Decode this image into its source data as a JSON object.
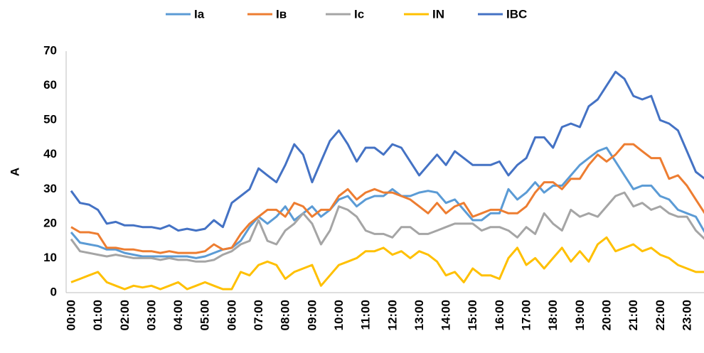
{
  "chart_data": {
    "type": "line",
    "ylabel": "A",
    "categories": [
      "00:00",
      null,
      null,
      "01:00",
      null,
      null,
      "02:00",
      null,
      null,
      "03:00",
      null,
      null,
      "04:00",
      null,
      null,
      "05:00",
      null,
      null,
      "06:00",
      null,
      null,
      "07:00",
      null,
      null,
      "08:00",
      null,
      null,
      "09:00",
      null,
      null,
      "10:00",
      null,
      null,
      "11:00",
      null,
      null,
      "12:00",
      null,
      null,
      "13:00",
      null,
      null,
      "14:00",
      null,
      null,
      "15:00",
      null,
      null,
      "16:00",
      null,
      null,
      "17:00",
      null,
      null,
      "18:00",
      null,
      null,
      "19:00",
      null,
      null,
      "20:00",
      null,
      null,
      "21:00",
      null,
      null,
      "22:00",
      null,
      null,
      "23:00",
      null,
      null
    ],
    "ylim": [
      0,
      70
    ],
    "yticks": [
      0,
      10,
      20,
      30,
      40,
      50,
      60,
      70
    ],
    "grid": false,
    "legend": "top",
    "series": [
      {
        "name": "Ia",
        "color": "#5b9bd5",
        "values": [
          17.5,
          14.5,
          14,
          13.5,
          12.5,
          12.5,
          11.5,
          11,
          10.5,
          10.5,
          10.5,
          10.5,
          10.5,
          10.5,
          10,
          10.5,
          11.5,
          12.5,
          13,
          15,
          19,
          22,
          20,
          22,
          25,
          21,
          23,
          25,
          22,
          24,
          27,
          28,
          25,
          27,
          28,
          28,
          30,
          28,
          28,
          29,
          29.5,
          29,
          26,
          27,
          24,
          21,
          21,
          23,
          23,
          30,
          27,
          29,
          32,
          29,
          31,
          31,
          34,
          37,
          39,
          41,
          42,
          38,
          34,
          30,
          31,
          31,
          28,
          27,
          24,
          23,
          22,
          17.5
        ]
      },
      {
        "name": "Iʙ",
        "color": "#ed7d31",
        "values": [
          19,
          17.5,
          17.5,
          17,
          13,
          13,
          12.5,
          12.5,
          12,
          12,
          11.5,
          12,
          11.5,
          11.5,
          11.5,
          12,
          14,
          12.5,
          13,
          17,
          20,
          22,
          24,
          24,
          22,
          26,
          25,
          22,
          24,
          24,
          28,
          30,
          27,
          29,
          30,
          29,
          29,
          28,
          27,
          25,
          23,
          26,
          23,
          25,
          26,
          22,
          23,
          24,
          24,
          23,
          23,
          25,
          29,
          32,
          32,
          30,
          33,
          33,
          37,
          40,
          38,
          40,
          43,
          43,
          41,
          39,
          39,
          33,
          34,
          31,
          27,
          23
        ]
      },
      {
        "name": "Ic",
        "color": "#a5a5a5",
        "values": [
          15.5,
          12,
          11.5,
          11,
          10.5,
          11,
          10.5,
          10,
          10,
          10,
          9.5,
          10,
          9.5,
          9.5,
          9,
          9,
          9.5,
          11,
          12,
          14,
          15,
          21,
          15,
          14,
          18,
          20,
          23,
          20,
          14,
          18,
          25,
          24,
          22,
          18,
          17,
          17,
          16,
          19,
          19,
          17,
          17,
          18,
          19,
          20,
          20,
          20,
          18,
          19,
          19,
          18,
          16,
          19,
          17,
          23,
          20,
          18,
          24,
          22,
          23,
          22,
          25,
          28,
          29,
          25,
          26,
          24,
          25,
          23,
          22,
          22,
          18,
          15.5
        ]
      },
      {
        "name": "IN",
        "color": "#ffc000",
        "values": [
          3,
          4,
          5,
          6,
          3,
          2,
          1,
          2,
          1.5,
          2,
          1,
          2,
          3,
          1,
          2,
          3,
          2,
          1,
          1,
          6,
          5,
          8,
          9,
          8,
          4,
          6,
          7,
          8,
          2,
          5,
          8,
          9,
          10,
          12,
          12,
          13,
          11,
          12,
          10,
          12,
          11,
          9,
          5,
          6,
          3,
          7,
          5,
          5,
          4,
          10,
          13,
          8,
          10,
          7,
          10,
          13,
          9,
          12,
          9,
          14,
          16,
          12,
          13,
          14,
          12,
          13,
          11,
          10,
          8,
          7,
          6,
          6
        ]
      },
      {
        "name": "IBC",
        "color": "#4472c4",
        "values": [
          29.5,
          26,
          25.5,
          24,
          20,
          20.5,
          19.5,
          19.5,
          19,
          19,
          18.5,
          19.5,
          18,
          18.5,
          18,
          18.5,
          21,
          19,
          26,
          28,
          30,
          36,
          34,
          32,
          37,
          43,
          40,
          32,
          38,
          44,
          47,
          43,
          38,
          42,
          42,
          40,
          43,
          42,
          38,
          34,
          37,
          40,
          37,
          41,
          39,
          37,
          37,
          37,
          38,
          34,
          37,
          39,
          45,
          45,
          42,
          48,
          49,
          48,
          54,
          56,
          60,
          64,
          62,
          57,
          56,
          57,
          50,
          49,
          47,
          41,
          35,
          33
        ]
      }
    ]
  }
}
